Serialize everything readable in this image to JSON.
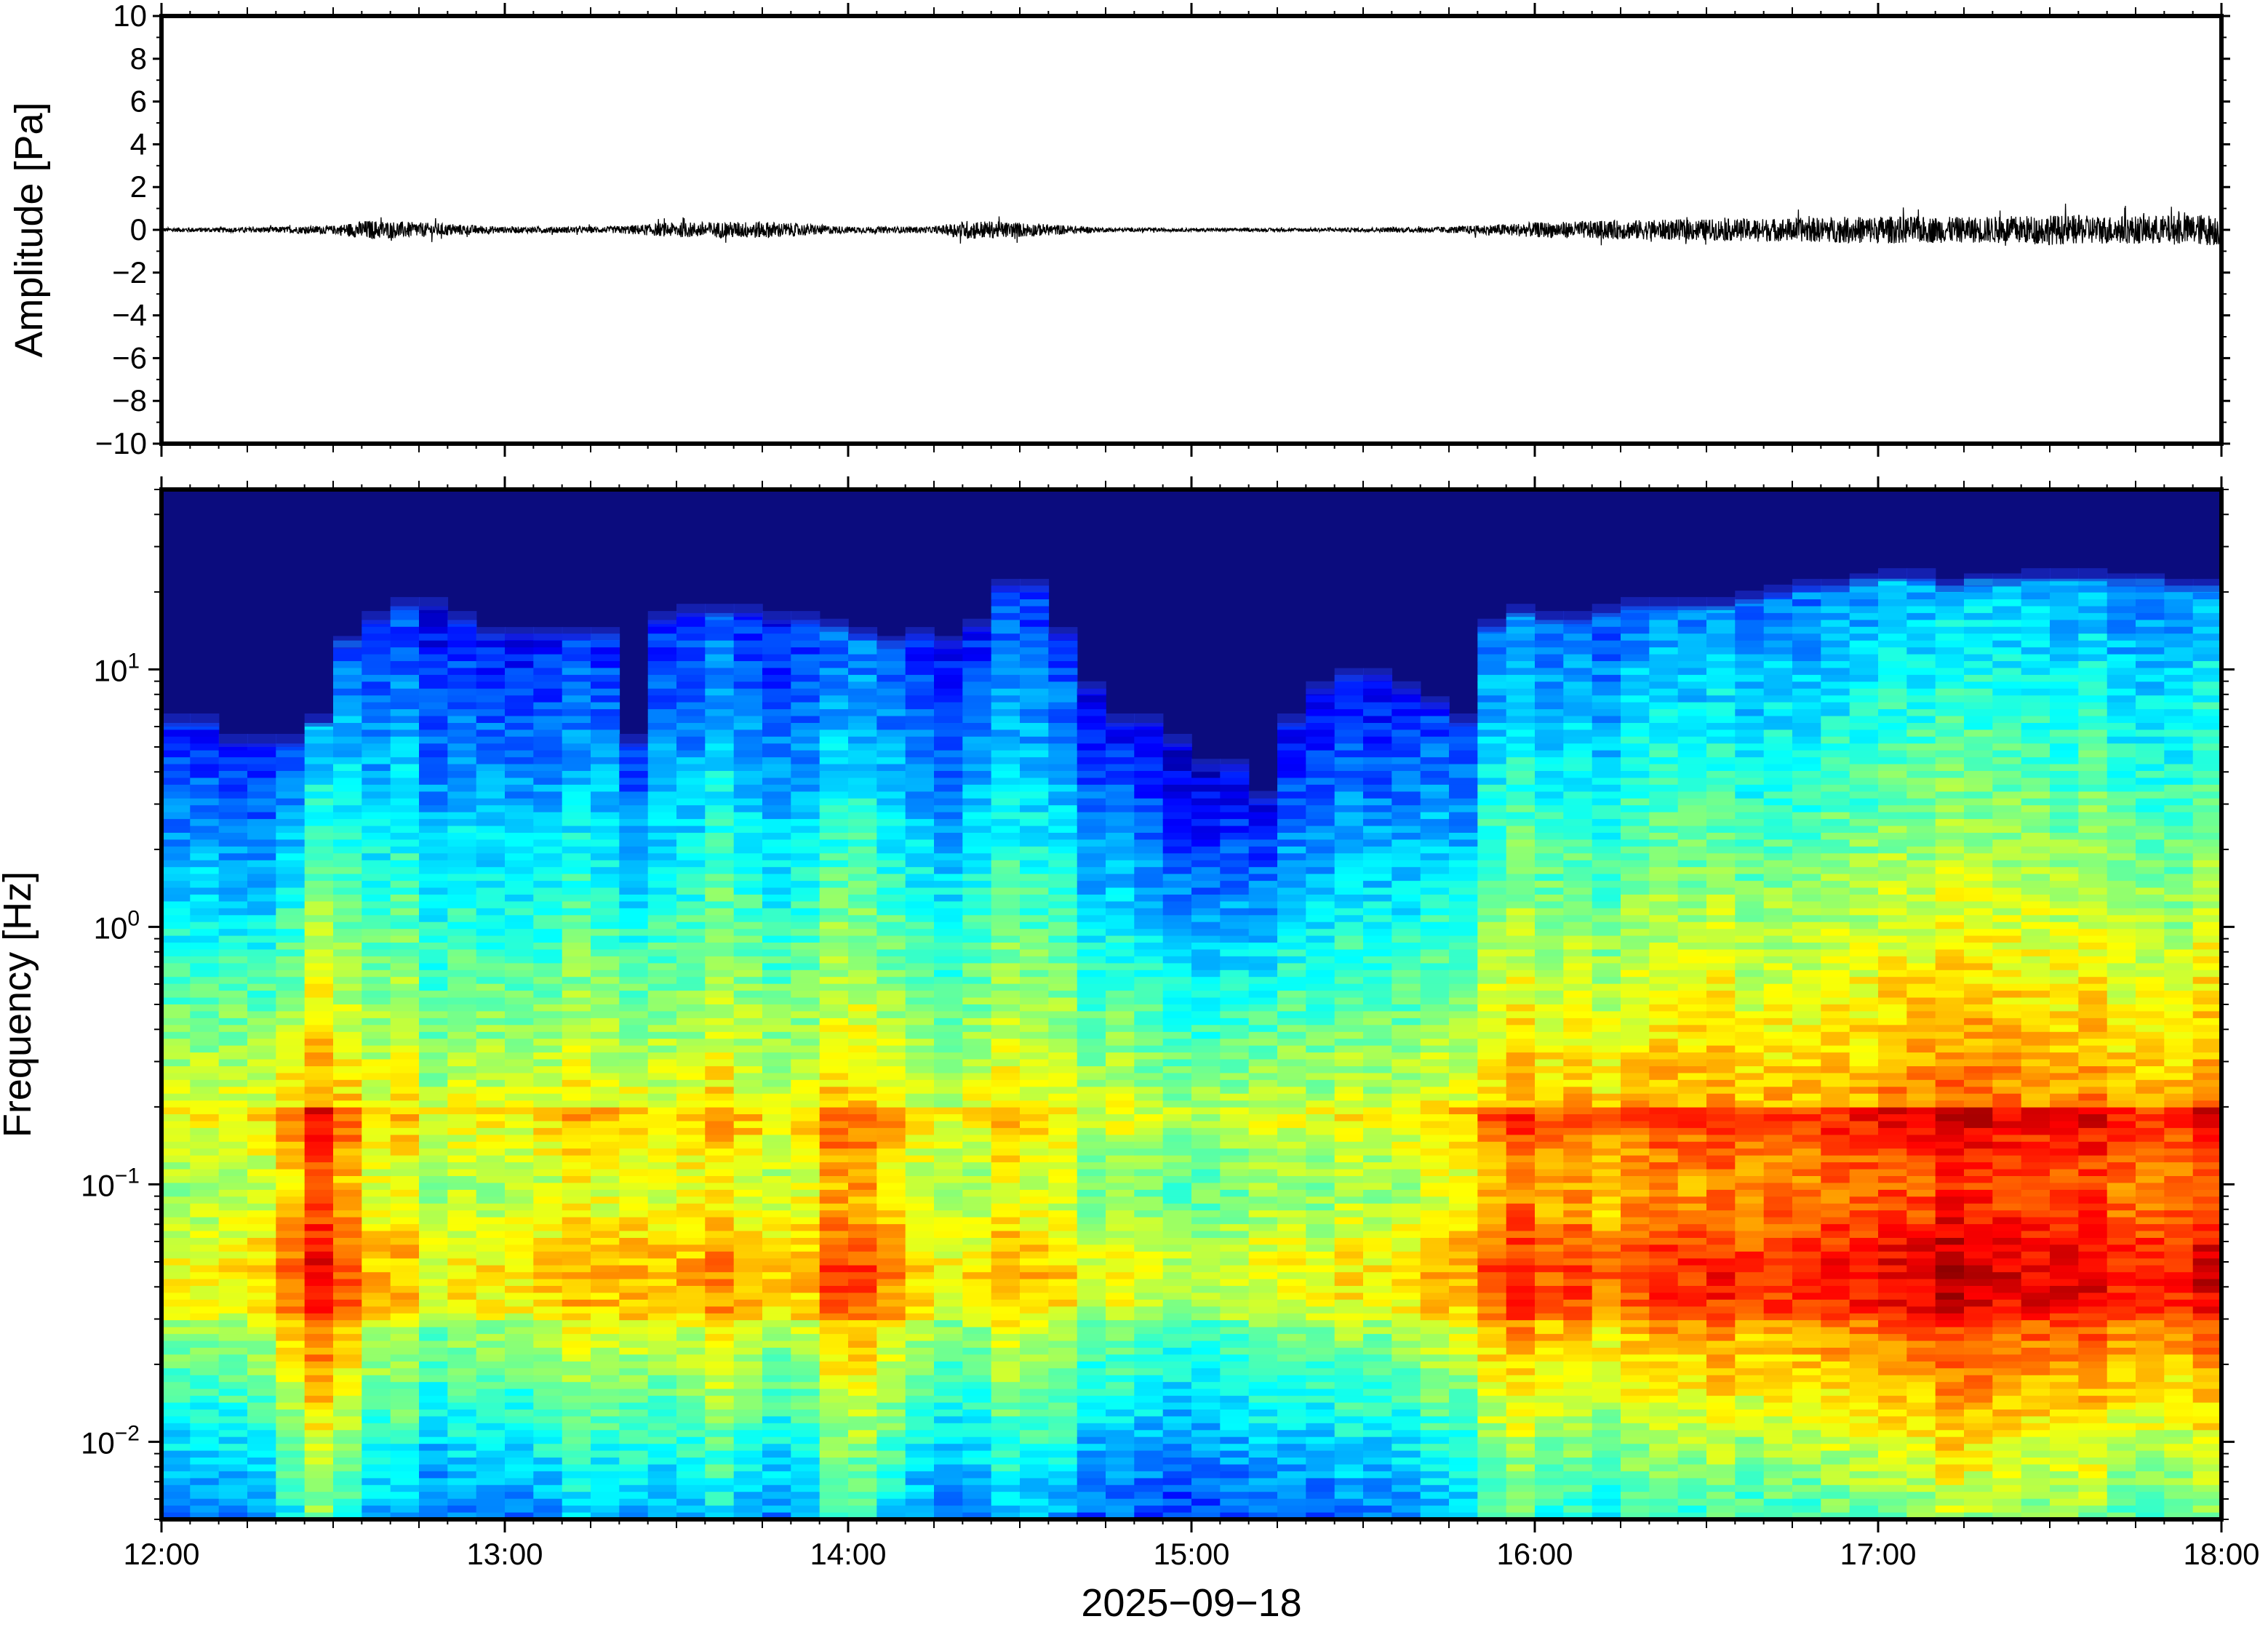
{
  "chart_data": [
    {
      "type": "line",
      "panel": "waveform",
      "ylabel": "Amplitude [Pa]",
      "xlabel": "",
      "xlim": [
        "12:00",
        "18:00"
      ],
      "ylim": [
        -10,
        10
      ],
      "yticks": [
        "10",
        "8",
        "6",
        "4",
        "2",
        "0",
        "−2",
        "−4",
        "−6",
        "−8",
        "−10"
      ],
      "ytick_values": [
        10,
        8,
        6,
        4,
        2,
        0,
        -2,
        -4,
        -6,
        -8,
        -10
      ],
      "line_color": "#000000",
      "envelope": {
        "hours": [
          12.0,
          12.25,
          12.5,
          12.6,
          12.75,
          13.0,
          13.3,
          13.5,
          13.75,
          14.0,
          14.25,
          14.35,
          14.5,
          14.75,
          15.0,
          15.25,
          15.5,
          15.75,
          16.0,
          16.25,
          16.5,
          16.75,
          17.0,
          17.25,
          17.5,
          17.75,
          18.0
        ],
        "amplitude_pa": [
          0.1,
          0.12,
          0.2,
          0.45,
          0.35,
          0.15,
          0.15,
          0.35,
          0.4,
          0.15,
          0.15,
          0.45,
          0.35,
          0.1,
          0.08,
          0.08,
          0.1,
          0.15,
          0.35,
          0.45,
          0.5,
          0.55,
          0.65,
          0.6,
          0.7,
          0.65,
          0.75
        ]
      }
    },
    {
      "type": "heatmap",
      "panel": "spectrogram",
      "ylabel": "Frequency [Hz]",
      "xlabel": "2025−09−18",
      "xticks": [
        "12:00",
        "13:00",
        "14:00",
        "15:00",
        "16:00",
        "17:00",
        "18:00"
      ],
      "xtick_hours": [
        12,
        13,
        14,
        15,
        16,
        17,
        18
      ],
      "yscale": "log",
      "ylim": [
        0.005,
        50
      ],
      "yticks": [
        {
          "value": 0.01,
          "base": "10",
          "exp": "−2"
        },
        {
          "value": 0.1,
          "base": "10",
          "exp": "−1"
        },
        {
          "value": 1,
          "base": "10",
          "exp": "0"
        },
        {
          "value": 10,
          "base": "10",
          "exp": "1"
        }
      ],
      "colormap": "jet",
      "background_color": "#0b0c7e",
      "time_bins": 72,
      "cutoff_frequency_hz": [
        6,
        6,
        5,
        5,
        5,
        6,
        12,
        15,
        17,
        17,
        15,
        13,
        13,
        13,
        13,
        13,
        5,
        15,
        16,
        16,
        16,
        15,
        15,
        14,
        13,
        12,
        13,
        12,
        14,
        20,
        20,
        13,
        8,
        6,
        6,
        5,
        4,
        4,
        3,
        6,
        8,
        9,
        9,
        8,
        7,
        6,
        14,
        16,
        15,
        15,
        16,
        17,
        17,
        17,
        17,
        18,
        19,
        20,
        20,
        21,
        22,
        22,
        20,
        21,
        21,
        22,
        22,
        22,
        21,
        21,
        20,
        20
      ],
      "peak_band_hz": [
        0.03,
        0.2
      ],
      "peak_intensity": [
        0.6,
        0.6,
        0.62,
        0.7,
        0.78,
        0.85,
        0.8,
        0.7,
        0.66,
        0.65,
        0.62,
        0.64,
        0.66,
        0.7,
        0.72,
        0.72,
        0.7,
        0.72,
        0.74,
        0.72,
        0.7,
        0.68,
        0.72,
        0.82,
        0.82,
        0.76,
        0.68,
        0.64,
        0.62,
        0.7,
        0.68,
        0.64,
        0.6,
        0.58,
        0.58,
        0.58,
        0.6,
        0.6,
        0.62,
        0.62,
        0.64,
        0.66,
        0.66,
        0.66,
        0.68,
        0.72,
        0.8,
        0.82,
        0.8,
        0.8,
        0.78,
        0.78,
        0.8,
        0.8,
        0.82,
        0.84,
        0.84,
        0.86,
        0.86,
        0.88,
        0.86,
        0.86,
        0.92,
        0.9,
        0.88,
        0.88,
        0.92,
        0.9,
        0.88,
        0.86,
        0.88,
        0.9
      ]
    }
  ]
}
